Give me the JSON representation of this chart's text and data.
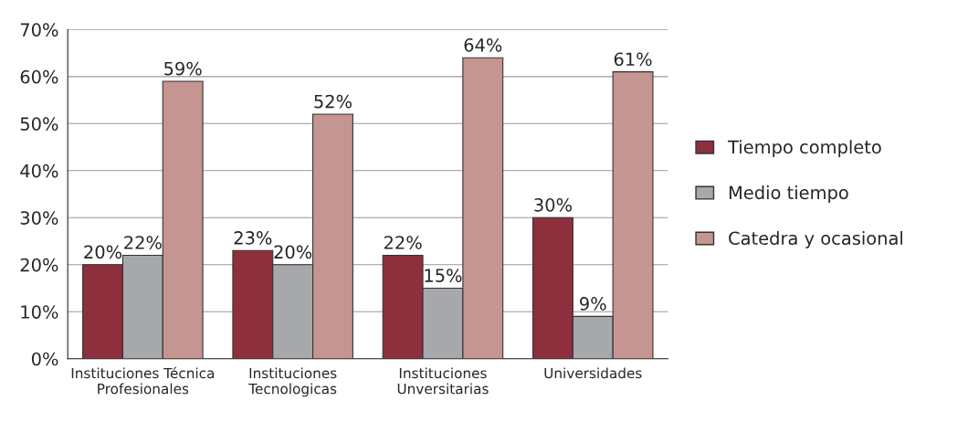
{
  "chart_data": {
    "type": "bar",
    "categories": [
      "Instituciones Técnica\nProfesionales",
      "Instituciones\nTecnologicas",
      "Instituciones\nUnversitarias",
      "Universidades"
    ],
    "series": [
      {
        "name": "Tiempo completo",
        "color": "#8e2f3e",
        "values": [
          20,
          23,
          22,
          30
        ],
        "value_labels": [
          "20%",
          "23%",
          "22%",
          "30%"
        ]
      },
      {
        "name": "Medio tiempo",
        "color": "#a7a8ac",
        "values": [
          22,
          20,
          15,
          9
        ],
        "value_labels": [
          "22%",
          "20%",
          "15%",
          "9%"
        ]
      },
      {
        "name": "Catedra y ocasional",
        "color": "#c59591",
        "values": [
          59,
          52,
          64,
          61
        ],
        "value_labels": [
          "59%",
          "52%",
          "64%",
          "61%"
        ]
      }
    ],
    "ylim": [
      0,
      70
    ],
    "yticks": [
      {
        "value": 0,
        "label": "0%"
      },
      {
        "value": 10,
        "label": "10%"
      },
      {
        "value": 20,
        "label": "20%"
      },
      {
        "value": 30,
        "label": "30%"
      },
      {
        "value": 40,
        "label": "40%"
      },
      {
        "value": 50,
        "label": "50%"
      },
      {
        "value": 60,
        "label": "60%"
      },
      {
        "value": 70,
        "label": "70%"
      }
    ],
    "grid": "y",
    "legend": "right"
  }
}
